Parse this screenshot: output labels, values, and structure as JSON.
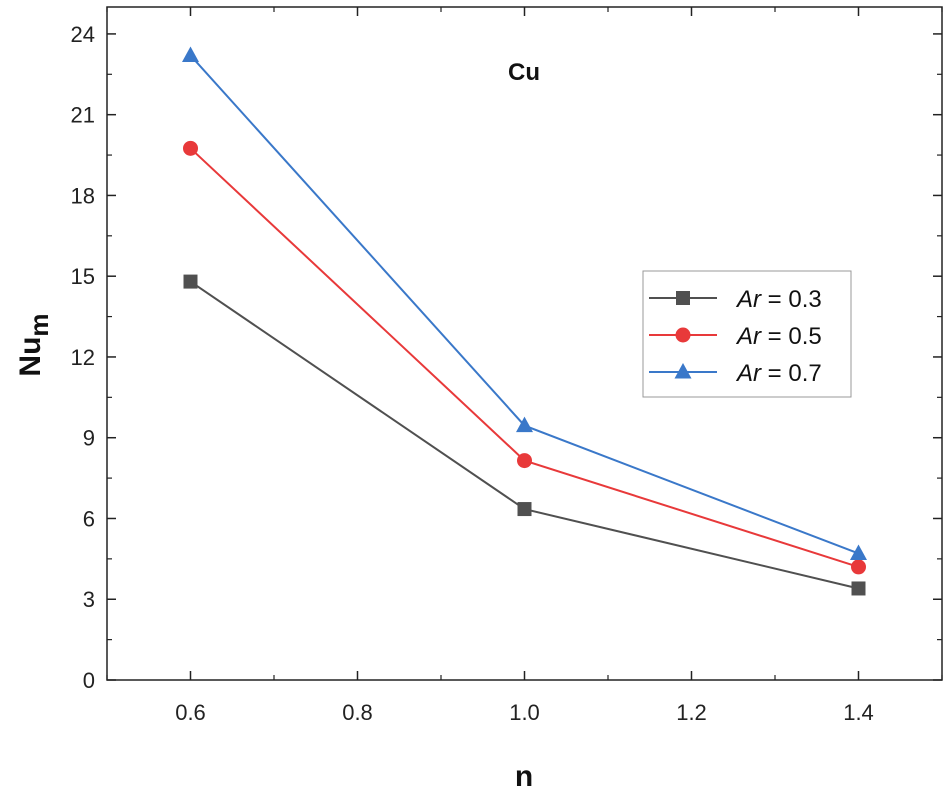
{
  "chart_data": {
    "type": "line",
    "title": "Cu",
    "xlabel": "n",
    "ylabel_main": "Nu",
    "ylabel_sub": "m",
    "xlim": [
      0.5,
      1.5
    ],
    "ylim": [
      0,
      25
    ],
    "xticks": [
      0.6,
      0.8,
      1.0,
      1.2,
      1.4
    ],
    "xtick_labels": [
      "0.6",
      "0.8",
      "1.0",
      "1.2",
      "1.4"
    ],
    "yticks": [
      0,
      3,
      6,
      9,
      12,
      15,
      18,
      21,
      24
    ],
    "ytick_labels": [
      "0",
      "3",
      "6",
      "9",
      "12",
      "15",
      "18",
      "21",
      "24"
    ],
    "x": [
      0.6,
      1.0,
      1.4
    ],
    "legend_position": "center-right",
    "series": [
      {
        "name": "Ar = 0.3",
        "legend_var": "Ar",
        "legend_val": " = 0.3",
        "marker": "square",
        "color": "#505050",
        "values": [
          14.8,
          6.35,
          3.4
        ]
      },
      {
        "name": "Ar = 0.5",
        "legend_var": "Ar",
        "legend_val": " = 0.5",
        "marker": "circle",
        "color": "#e8393a",
        "values": [
          19.75,
          8.15,
          4.2
        ]
      },
      {
        "name": "Ar = 0.7",
        "legend_var": "Ar",
        "legend_val": " = 0.7",
        "marker": "triangle",
        "color": "#3a78c9",
        "values": [
          23.2,
          9.45,
          4.7
        ]
      }
    ]
  }
}
